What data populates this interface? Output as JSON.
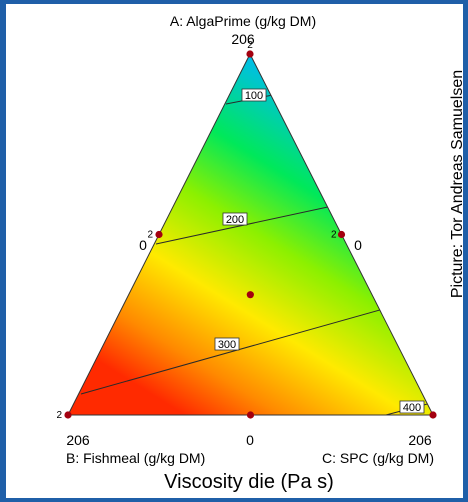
{
  "credit": "Picture: Tor Andreas Samuelsen",
  "colors": {
    "background": "#1f5fa8",
    "gradient": [
      "#0037ff",
      "#00b7ff",
      "#00e85a",
      "#8cf000",
      "#ffea00",
      "#ff8a00",
      "#ff2a00"
    ],
    "point": "#a3000f",
    "contour": "#2a2a2a"
  },
  "chart_data": {
    "type": "ternary contour",
    "title": "Viscosity die (Pa s)",
    "axes": {
      "A": {
        "label": "A: AlgaPrime (g/kg DM)",
        "max": 206,
        "min": 0
      },
      "B": {
        "label": "B: Fishmeal (g/kg DM)",
        "max": 206,
        "min": 0
      },
      "C": {
        "label": "C: SPC (g/kg DM)",
        "max": 206,
        "min": 0
      }
    },
    "tick_labels": {
      "top": "206",
      "left": "206",
      "middle": "0",
      "right": "206",
      "left_edge_zero": "0",
      "right_edge_zero": "0"
    },
    "design_points": [
      {
        "A": 206,
        "B": 0,
        "C": 0,
        "replicates": 2
      },
      {
        "A": 103,
        "B": 103,
        "C": 0,
        "replicates": 2
      },
      {
        "A": 103,
        "B": 0,
        "C": 103,
        "replicates": 2
      },
      {
        "A": 68.7,
        "B": 68.7,
        "C": 68.7,
        "replicates": 1
      },
      {
        "A": 0,
        "B": 206,
        "C": 0,
        "replicates": 2
      },
      {
        "A": 0,
        "B": 103,
        "C": 103,
        "replicates": 1
      },
      {
        "A": 0,
        "B": 0,
        "C": 206,
        "replicates": 1
      }
    ],
    "contours": [
      {
        "level": 100,
        "label": "100"
      },
      {
        "level": 200,
        "label": "200"
      },
      {
        "level": 300,
        "label": "300"
      },
      {
        "level": 400,
        "label": "400"
      }
    ]
  }
}
